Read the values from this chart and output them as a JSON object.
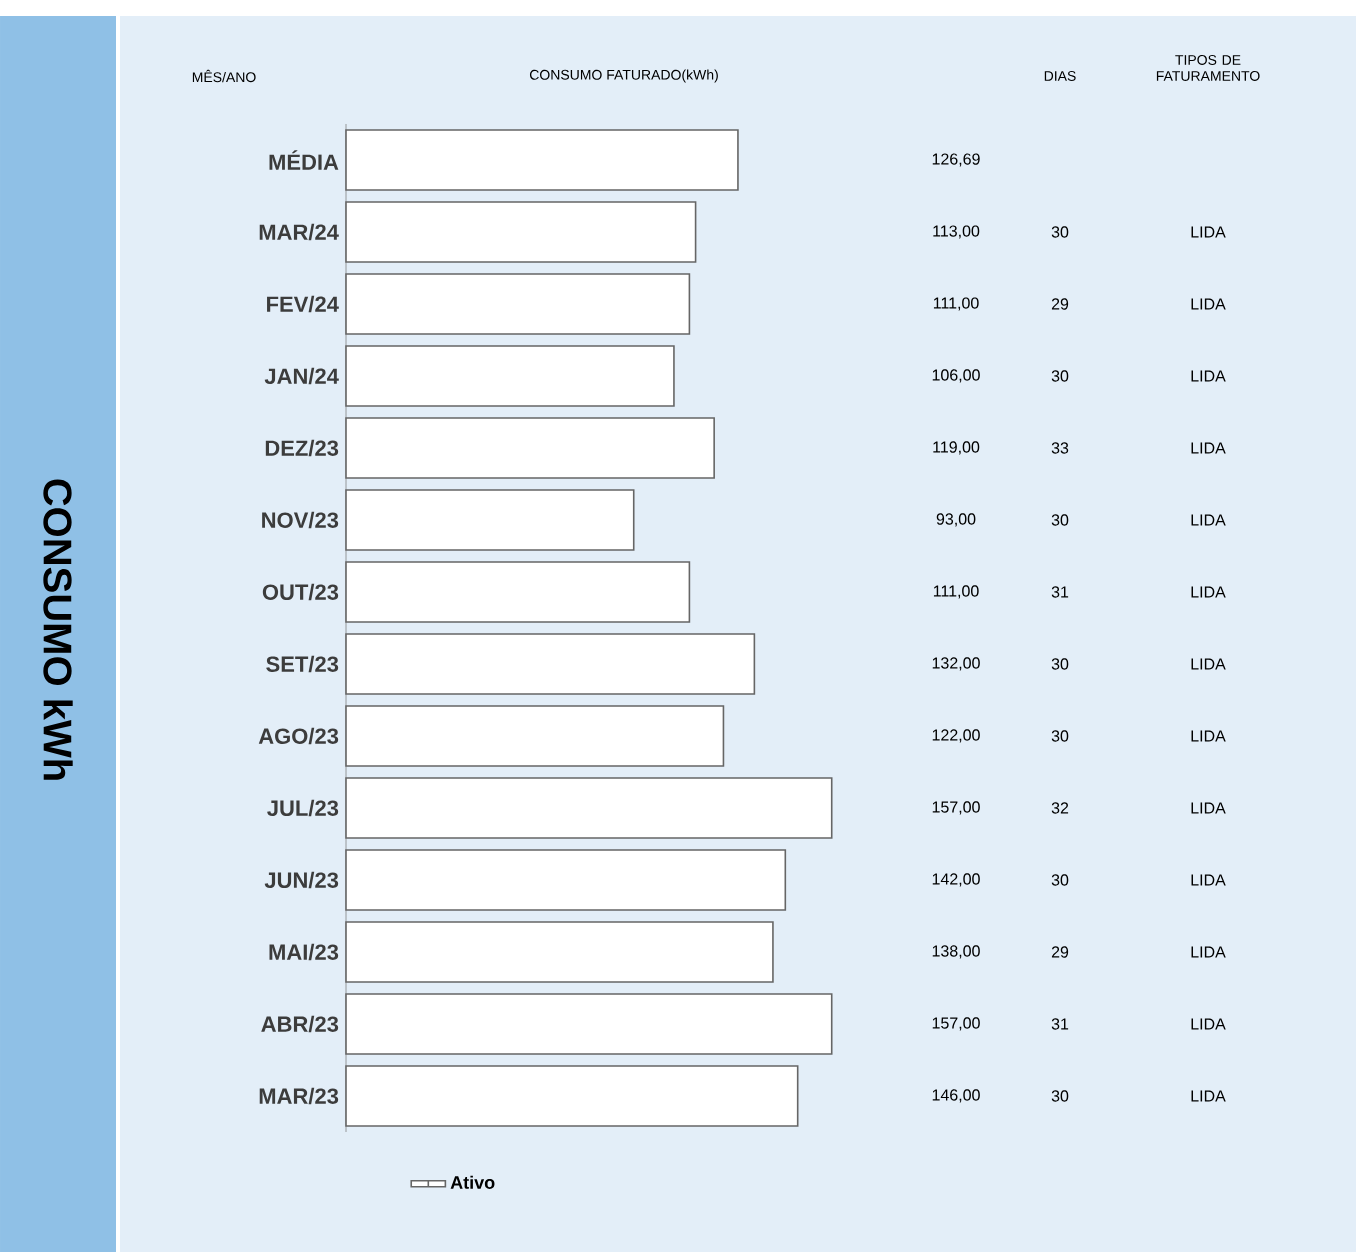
{
  "chart_data": {
    "type": "bar",
    "orientation": "horizontal",
    "title": "CONSUMO kWh",
    "xlabel": "CONSUMO FATURADO(kWh)",
    "ylabel": "MÊS/ANO",
    "categories": [
      "MÉDIA",
      "MAR/24",
      "FEV/24",
      "JAN/24",
      "DEZ/23",
      "NOV/23",
      "OUT/23",
      "SET/23",
      "AGO/23",
      "JUL/23",
      "JUN/23",
      "MAI/23",
      "ABR/23",
      "MAR/23"
    ],
    "series": [
      {
        "name": "Ativo",
        "color": "#ffffff",
        "values": [
          126.69,
          113,
          111,
          106,
          119,
          93,
          111,
          132,
          122,
          157,
          142,
          138,
          157,
          146
        ],
        "value_labels": [
          "126,69",
          "113,00",
          "111,00",
          "106,00",
          "119,00",
          "93,00",
          "111,00",
          "132,00",
          "122,00",
          "157,00",
          "142,00",
          "138,00",
          "157,00",
          "146,00"
        ]
      }
    ],
    "tick_labels": "y",
    "legend": "bottom",
    "grid": false,
    "annotations": [
      "DIAS",
      "TIPOS DE FATURAMENTO",
      "30",
      "LIDA",
      "29",
      "LIDA",
      "30",
      "LIDA",
      "33",
      "LIDA",
      "30",
      "LIDA",
      "31",
      "LIDA",
      "30",
      "LIDA",
      "30",
      "LIDA",
      "32",
      "LIDA",
      "30",
      "LIDA",
      "29",
      "LIDA",
      "31",
      "LIDA",
      "30",
      "LIDA"
    ]
  }
}
